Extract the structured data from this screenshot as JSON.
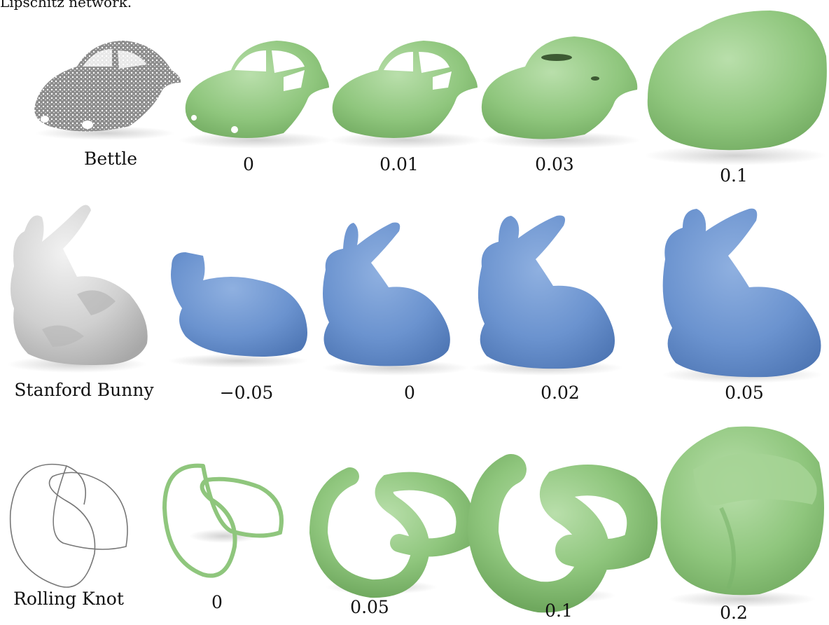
{
  "header": {
    "text": "Lipschitz network."
  },
  "rows": [
    {
      "name": "beetle",
      "object_label": "Bettle",
      "values": [
        "0",
        "0.01",
        "0.03",
        "0.1"
      ],
      "color": "#8fc67d"
    },
    {
      "name": "bunny",
      "object_label": "Stanford Bunny",
      "values": [
        "−0.05",
        "0",
        "0.02",
        "0.05"
      ],
      "color": "#6b93cf"
    },
    {
      "name": "knot",
      "object_label": "Rolling Knot",
      "values": [
        "0",
        "0.05",
        "0.1",
        "0.2"
      ],
      "color": "#8fc67d"
    }
  ]
}
